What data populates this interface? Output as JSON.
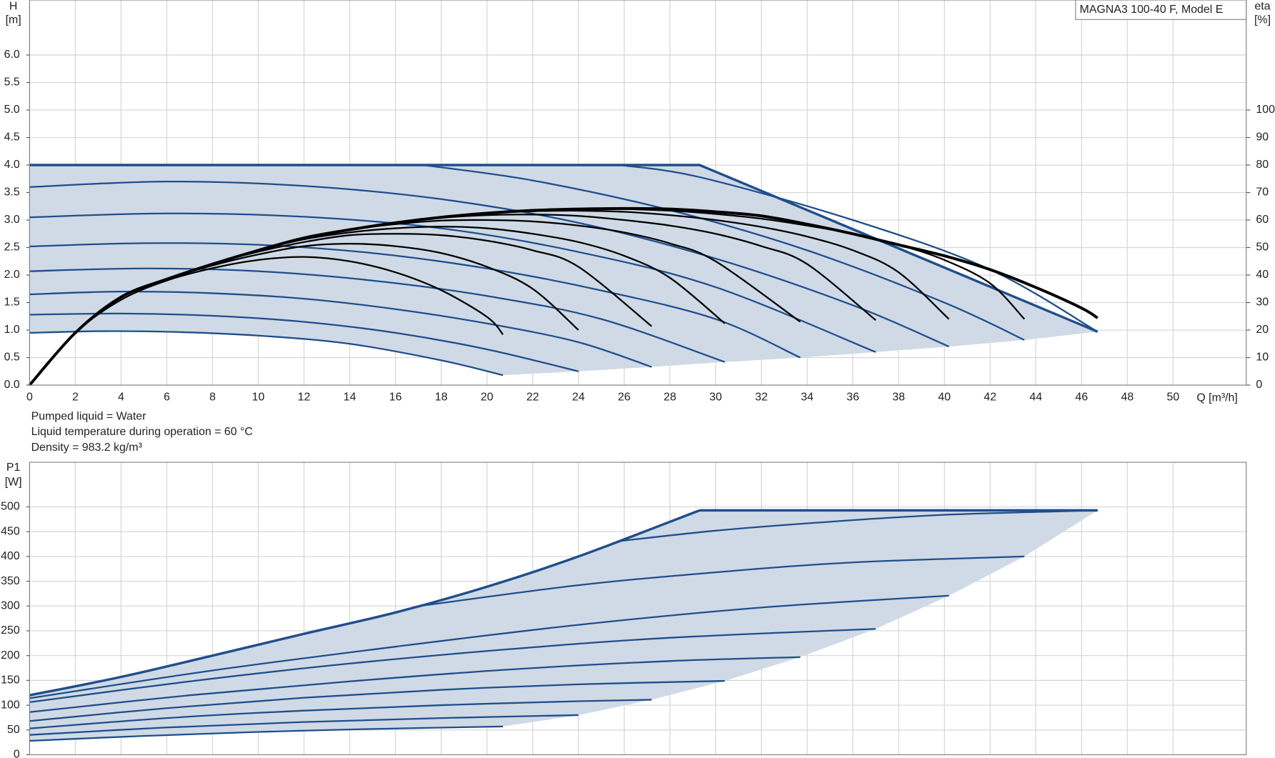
{
  "notes": [
    "Pumped liquid = Water",
    "Liquid temperature during operation = 60 °C",
    "Density = 983.2 kg/m³"
  ],
  "chart_data": [
    {
      "type": "line",
      "title": "MAGNA3 100-40 F, Model E",
      "ylabel": "H",
      "yunit": "[m]",
      "y2label": "eta",
      "y2unit": "[%]",
      "xlabel": "Q [m³/h]",
      "xlim": [
        0,
        53.2
      ],
      "ylim": [
        0,
        7
      ],
      "y2lim": [
        0,
        140
      ],
      "xticks": [
        0,
        2,
        4,
        6,
        8,
        10,
        12,
        14,
        16,
        18,
        20,
        22,
        24,
        26,
        28,
        30,
        32,
        34,
        36,
        38,
        40,
        42,
        44,
        46,
        48,
        50
      ],
      "yticks": [
        {
          "value": 0,
          "label": "0.0"
        },
        {
          "value": 0.5,
          "label": "0.5"
        },
        {
          "value": 1,
          "label": "1.0"
        },
        {
          "value": 1.5,
          "label": "1.5"
        },
        {
          "value": 2,
          "label": "2.0"
        },
        {
          "value": 2.5,
          "label": "2.5"
        },
        {
          "value": 3,
          "label": "3.0"
        },
        {
          "value": 3.5,
          "label": "3.5"
        },
        {
          "value": 4,
          "label": "4.0"
        },
        {
          "value": 4.5,
          "label": "4.5"
        },
        {
          "value": 5,
          "label": "5.0"
        },
        {
          "value": 5.5,
          "label": "5.5"
        },
        {
          "value": 6,
          "label": "6.0"
        }
      ],
      "y2ticks": [
        0,
        10,
        20,
        30,
        40,
        50,
        60,
        70,
        80,
        90,
        100
      ],
      "grid": true,
      "area_color": "#cfdae6",
      "series": [
        {
          "color": "#1f4e8c",
          "width": 2,
          "smooth": true,
          "x": [
            0,
            3,
            6,
            10,
            14,
            18,
            20.7
          ],
          "values": [
            0.95,
            0.98,
            0.97,
            0.9,
            0.75,
            0.45,
            0.18
          ]
        },
        {
          "color": "#1f4e8c",
          "width": 2,
          "smooth": true,
          "x": [
            0,
            4,
            8,
            12,
            16,
            20,
            24
          ],
          "values": [
            1.28,
            1.3,
            1.26,
            1.15,
            0.95,
            0.65,
            0.25
          ]
        },
        {
          "color": "#1f4e8c",
          "width": 2,
          "smooth": true,
          "x": [
            0,
            4,
            8,
            12,
            16,
            20,
            24,
            27.2
          ],
          "values": [
            1.65,
            1.7,
            1.67,
            1.57,
            1.38,
            1.12,
            0.78,
            0.33
          ]
        },
        {
          "color": "#1f4e8c",
          "width": 2,
          "smooth": true,
          "x": [
            0,
            5,
            10,
            15,
            20,
            25,
            30.4
          ],
          "values": [
            2.07,
            2.12,
            2.07,
            1.9,
            1.62,
            1.2,
            0.42
          ]
        },
        {
          "color": "#1f4e8c",
          "width": 2,
          "smooth": true,
          "x": [
            0,
            5,
            10,
            15,
            20,
            25,
            30,
            33.7
          ],
          "values": [
            2.52,
            2.58,
            2.55,
            2.4,
            2.12,
            1.72,
            1.2,
            0.5
          ]
        },
        {
          "color": "#1f4e8c",
          "width": 2,
          "smooth": true,
          "x": [
            0,
            6,
            12,
            18,
            24,
            30,
            37
          ],
          "values": [
            3.05,
            3.12,
            3.06,
            2.85,
            2.42,
            1.78,
            0.6
          ]
        },
        {
          "color": "#1f4e8c",
          "width": 2,
          "smooth": true,
          "x": [
            0,
            6,
            12,
            18,
            24,
            30,
            36,
            40.2
          ],
          "values": [
            3.6,
            3.7,
            3.62,
            3.38,
            2.95,
            2.3,
            1.45,
            0.7
          ]
        },
        {
          "color": "#1f4e8c",
          "width": 2,
          "smooth": true,
          "x": [
            17.2,
            22,
            28,
            34,
            40,
            43.5
          ],
          "values": [
            4,
            3.72,
            3.18,
            2.45,
            1.5,
            0.82
          ]
        },
        {
          "color": "#1f4e8c",
          "width": 2,
          "smooth": true,
          "x": [
            25.8,
            29.3,
            36,
            42,
            46.7
          ],
          "values": [
            4,
            3.78,
            3.0,
            2.1,
            0.97
          ]
        },
        {
          "color": "#1f4e8c",
          "width": 3,
          "smooth": false,
          "x": [
            0,
            29.3,
            46.7
          ],
          "values": [
            4,
            4,
            0.97
          ]
        },
        {
          "color": "#000000",
          "width": 2,
          "smooth": true,
          "axis": "y2",
          "x": [
            0,
            2,
            4,
            6,
            8,
            10,
            12,
            14,
            16,
            18,
            20,
            20.7
          ],
          "values": [
            0,
            19,
            31,
            38,
            42.5,
            45.5,
            46.6,
            45,
            41,
            34.5,
            24.8,
            18.4
          ]
        },
        {
          "color": "#000000",
          "width": 2,
          "smooth": true,
          "axis": "y2",
          "x": [
            0,
            2,
            4,
            6,
            8,
            10,
            12,
            14,
            16,
            18,
            20,
            22,
            24
          ],
          "values": [
            0,
            19,
            32,
            38.5,
            43.5,
            47.5,
            50.5,
            51.4,
            50.5,
            48,
            43,
            35,
            20
          ]
        },
        {
          "color": "#000000",
          "width": 2,
          "smooth": true,
          "axis": "y2",
          "x": [
            0,
            2,
            4,
            6,
            8,
            10,
            12,
            14,
            16,
            18,
            20,
            22,
            24,
            27.2
          ],
          "values": [
            0,
            19,
            32,
            38.5,
            44,
            48.5,
            52,
            54.5,
            55,
            54.5,
            52.5,
            49,
            43,
            21.4
          ]
        },
        {
          "color": "#000000",
          "width": 2,
          "smooth": true,
          "axis": "y2",
          "x": [
            0,
            2,
            4,
            6,
            8,
            10,
            12,
            14,
            16,
            18,
            20,
            22,
            24,
            26,
            28,
            30.4
          ],
          "values": [
            0,
            19,
            32,
            38.5,
            44,
            49,
            53,
            55.5,
            57,
            57.6,
            57,
            55,
            52,
            47,
            39,
            22.4
          ]
        },
        {
          "color": "#000000",
          "width": 2,
          "smooth": true,
          "axis": "y2",
          "x": [
            0,
            2,
            4,
            6,
            8,
            10,
            12,
            14,
            16,
            18,
            20,
            22,
            24,
            26,
            28,
            30,
            33.7
          ],
          "values": [
            0,
            19,
            32,
            38.5,
            44,
            49,
            53.5,
            56.5,
            58.5,
            59.8,
            60,
            59.5,
            58,
            55.5,
            51.5,
            45,
            23
          ]
        },
        {
          "color": "#000000",
          "width": 2,
          "smooth": true,
          "axis": "y2",
          "x": [
            0,
            2,
            4,
            6,
            8,
            10,
            12,
            14,
            16,
            18,
            20,
            22,
            24,
            26,
            28,
            30,
            32,
            34,
            37
          ],
          "values": [
            0,
            19,
            32,
            38.5,
            44,
            49,
            53.5,
            56.5,
            59,
            60.8,
            61.8,
            62,
            61.5,
            60,
            58,
            55,
            50.5,
            44,
            23.6
          ]
        },
        {
          "color": "#000000",
          "width": 2,
          "smooth": true,
          "axis": "y2",
          "x": [
            0,
            2,
            4,
            6,
            8,
            10,
            12,
            14,
            16,
            18,
            20,
            22,
            24,
            26,
            28,
            30,
            32,
            34,
            36,
            38,
            40.2
          ],
          "values": [
            0,
            19,
            32,
            38.5,
            44,
            49,
            53.5,
            56.5,
            59,
            61,
            62.5,
            63.2,
            63.4,
            63,
            61.8,
            60,
            57.5,
            54,
            49,
            41,
            24
          ]
        },
        {
          "color": "#000000",
          "width": 2,
          "smooth": true,
          "axis": "y2",
          "x": [
            0,
            2,
            4,
            6,
            8,
            10,
            12,
            14,
            16,
            18,
            20,
            22,
            24,
            26,
            28,
            30,
            32,
            34,
            36,
            38,
            40,
            42,
            43.5
          ],
          "values": [
            0,
            19,
            32,
            38.5,
            44,
            49,
            53.5,
            56.5,
            59,
            61,
            62.5,
            63.5,
            64,
            64,
            63.4,
            62.2,
            60.5,
            58,
            55,
            51,
            45.5,
            37,
            24
          ]
        },
        {
          "color": "#000000",
          "width": 3.5,
          "smooth": true,
          "axis": "y2",
          "x": [
            0,
            2,
            4,
            6,
            8,
            10,
            12,
            14,
            16,
            18,
            20,
            22,
            24,
            26,
            28,
            30,
            32,
            34,
            36,
            38,
            40,
            42,
            44,
            46,
            46.7
          ],
          "values": [
            0,
            19,
            32,
            38.5,
            44,
            49,
            53.5,
            56.5,
            59,
            61,
            62.5,
            63.5,
            64,
            64.2,
            64,
            63,
            61.5,
            58.5,
            55,
            51,
            47,
            42,
            35.5,
            28,
            24.4
          ]
        }
      ]
    },
    {
      "type": "line",
      "ylabel": "P1",
      "yunit": "[W]",
      "xlim": [
        0,
        53.2
      ],
      "ylim": [
        0,
        590
      ],
      "xgrid": [
        0,
        2,
        4,
        6,
        8,
        10,
        12,
        14,
        16,
        18,
        20,
        22,
        24,
        26,
        28,
        30,
        32,
        34,
        36,
        38,
        40,
        42,
        44,
        46,
        48,
        50
      ],
      "yticks": [
        0,
        50,
        100,
        150,
        200,
        250,
        300,
        350,
        400,
        450,
        500
      ],
      "grid": true,
      "area_color": "#cfdae6",
      "series": [
        {
          "color": "#1f4e8c",
          "width": 2,
          "smooth": true,
          "x": [
            0,
            5,
            10,
            15,
            20.7
          ],
          "values": [
            28,
            38,
            46,
            52,
            57
          ]
        },
        {
          "color": "#1f4e8c",
          "width": 2,
          "smooth": true,
          "x": [
            0,
            6,
            12,
            18,
            24
          ],
          "values": [
            40,
            55,
            66,
            74,
            80
          ]
        },
        {
          "color": "#1f4e8c",
          "width": 2,
          "smooth": true,
          "x": [
            0,
            6,
            12,
            18,
            24,
            27.2
          ],
          "values": [
            53,
            74,
            89,
            100,
            108,
            111
          ]
        },
        {
          "color": "#1f4e8c",
          "width": 2,
          "smooth": true,
          "x": [
            0,
            6,
            12,
            18,
            24,
            30.4
          ],
          "values": [
            68,
            94,
            115,
            131,
            142,
            149
          ]
        },
        {
          "color": "#1f4e8c",
          "width": 2,
          "smooth": true,
          "x": [
            0,
            7,
            14,
            21,
            28,
            33.7
          ],
          "values": [
            86,
            120,
            148,
            172,
            189,
            197
          ]
        },
        {
          "color": "#1f4e8c",
          "width": 2,
          "smooth": true,
          "x": [
            0,
            7,
            14,
            21,
            28,
            37
          ],
          "values": [
            106,
            148,
            184,
            213,
            236,
            254
          ]
        },
        {
          "color": "#1f4e8c",
          "width": 2,
          "smooth": true,
          "x": [
            0,
            8,
            16,
            24,
            32,
            40.2
          ],
          "values": [
            114,
            170,
            218,
            262,
            297,
            321
          ]
        },
        {
          "color": "#1f4e8c",
          "width": 2,
          "smooth": true,
          "x": [
            17.2,
            24,
            30,
            36,
            43.5
          ],
          "values": [
            301,
            342,
            368,
            388,
            400
          ]
        },
        {
          "color": "#1f4e8c",
          "width": 2,
          "smooth": true,
          "x": [
            25.8,
            30,
            35,
            40,
            46.7
          ],
          "values": [
            431,
            452,
            470,
            484,
            493
          ]
        },
        {
          "color": "#1f4e8c",
          "width": 3,
          "smooth": true,
          "x": [
            0,
            4,
            8,
            12,
            16,
            20,
            24,
            29.3
          ],
          "values": [
            120,
            157,
            200,
            244,
            287,
            339,
            400,
            493
          ]
        },
        {
          "color": "#1f4e8c",
          "width": 3,
          "smooth": false,
          "x": [
            29.3,
            46.7
          ],
          "values": [
            493,
            493
          ]
        }
      ]
    }
  ]
}
